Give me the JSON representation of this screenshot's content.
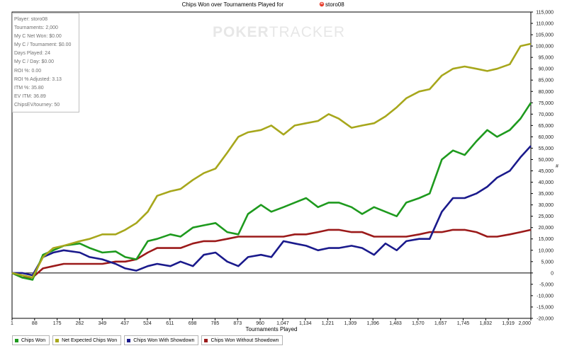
{
  "chart_data": {
    "type": "line",
    "title": "Chips Won over Tournaments Played for",
    "player_name": "storo08",
    "xlabel": "Tournaments Played",
    "ylabel": "",
    "xlim": [
      1,
      2000
    ],
    "ylim": [
      -20000,
      115000
    ],
    "x_ticks": [
      "1",
      "88",
      "175",
      "262",
      "349",
      "437",
      "524",
      "611",
      "698",
      "785",
      "873",
      "960",
      "1,047",
      "1,134",
      "1,221",
      "1,309",
      "1,396",
      "1,483",
      "1,570",
      "1,657",
      "1,745",
      "1,832",
      "1,919",
      "2,000"
    ],
    "y_ticks": [
      "115,000",
      "110,000",
      "105,000",
      "100,000",
      "95,000",
      "90,000",
      "85,000",
      "80,000",
      "75,000",
      "70,000",
      "65,000",
      "60,000",
      "55,000",
      "50,000",
      "45,000",
      "40,000",
      "35,000",
      "30,000",
      "25,000",
      "20,000",
      "15,000",
      "10,000",
      "5,000",
      "0",
      "-5,000",
      "-10,000",
      "-15,000",
      "-20,000"
    ],
    "y_tick_values": [
      115000,
      110000,
      105000,
      100000,
      95000,
      90000,
      85000,
      80000,
      75000,
      70000,
      65000,
      60000,
      55000,
      50000,
      45000,
      40000,
      35000,
      30000,
      25000,
      20000,
      15000,
      10000,
      5000,
      0,
      -5000,
      -10000,
      -15000,
      -20000
    ],
    "x": [
      1,
      40,
      80,
      120,
      160,
      200,
      262,
      300,
      349,
      400,
      437,
      480,
      524,
      560,
      611,
      650,
      698,
      740,
      785,
      830,
      873,
      910,
      960,
      1000,
      1047,
      1090,
      1134,
      1180,
      1221,
      1260,
      1309,
      1350,
      1396,
      1440,
      1483,
      1520,
      1570,
      1610,
      1657,
      1700,
      1745,
      1790,
      1832,
      1870,
      1919,
      1960,
      2000
    ],
    "series": [
      {
        "name": "Chips Won",
        "color": "#1e9a1e",
        "values": [
          0,
          -2000,
          -3000,
          8000,
          10000,
          12000,
          13000,
          11000,
          9000,
          9500,
          7000,
          6000,
          14000,
          15000,
          17000,
          16000,
          20000,
          21000,
          22000,
          18000,
          17000,
          26000,
          30000,
          27000,
          29000,
          31000,
          33000,
          29000,
          31000,
          31000,
          29000,
          26000,
          29000,
          27000,
          25000,
          31000,
          33000,
          35000,
          50000,
          54000,
          52000,
          58000,
          63000,
          60000,
          63000,
          68000,
          75000
        ]
      },
      {
        "name": "Net Expected Chips Won",
        "color": "#a7a71c",
        "values": [
          0,
          -1000,
          -2000,
          7000,
          11000,
          12000,
          14000,
          15000,
          17000,
          17000,
          19000,
          22000,
          27000,
          34000,
          36000,
          37000,
          41000,
          44000,
          46000,
          53000,
          60000,
          62000,
          63000,
          65000,
          61000,
          65000,
          66000,
          67000,
          70000,
          68000,
          64000,
          65000,
          66000,
          69000,
          73000,
          77000,
          80000,
          81000,
          87000,
          90000,
          91000,
          90000,
          89000,
          90000,
          92000,
          100000,
          101000
        ]
      },
      {
        "name": "Chips Won With Showdown",
        "color": "#1a1a8c",
        "values": [
          0,
          0,
          -1000,
          7000,
          9000,
          10000,
          9000,
          7000,
          6000,
          4000,
          2000,
          1000,
          3000,
          4000,
          3000,
          5000,
          3000,
          8000,
          9000,
          5000,
          3000,
          7000,
          8000,
          7000,
          14000,
          13000,
          12000,
          10000,
          11000,
          11000,
          12000,
          11000,
          8000,
          13000,
          10000,
          14000,
          15000,
          15000,
          27000,
          33000,
          33000,
          35000,
          38000,
          42000,
          45000,
          51000,
          56000
        ]
      },
      {
        "name": "Chips Won Without Showdown",
        "color": "#9b1a1a",
        "values": [
          0,
          -2000,
          -2000,
          2000,
          3000,
          4000,
          4000,
          4000,
          4000,
          5000,
          5000,
          6000,
          9000,
          11000,
          11000,
          11000,
          13000,
          14000,
          14000,
          15000,
          16000,
          16000,
          16000,
          16000,
          16000,
          17000,
          17000,
          18000,
          19000,
          19000,
          18000,
          18000,
          16000,
          16000,
          16000,
          16000,
          17000,
          18000,
          18000,
          19000,
          19000,
          18000,
          16000,
          16000,
          17000,
          18000,
          19000
        ]
      }
    ],
    "grid": false,
    "legend_position": "bottom"
  },
  "stats_panel": [
    "Player: storo08",
    "Tournaments: 2,000",
    "My C Net Won: $0.00",
    "My C / Tournament: $0.00",
    "Days Played: 24",
    "My C / Day: $0.00",
    "ROI %: 0.00",
    "ROI % Adjusted: 3.13",
    "ITM %: 35.80",
    "EV ITM: 36.89",
    "ChipsEV/tourney: 50"
  ],
  "watermark": {
    "bold": "POKER",
    "thin": "TRACKER"
  },
  "legend": [
    {
      "label": "Chips Won",
      "color": "#1e9a1e"
    },
    {
      "label": "Net Expected Chips Won",
      "color": "#a7a71c"
    },
    {
      "label": "Chips Won With Showdown",
      "color": "#1a1a8c"
    },
    {
      "label": "Chips Won Without Showdown",
      "color": "#9b1a1a"
    }
  ],
  "y_axis_symbol": "#"
}
